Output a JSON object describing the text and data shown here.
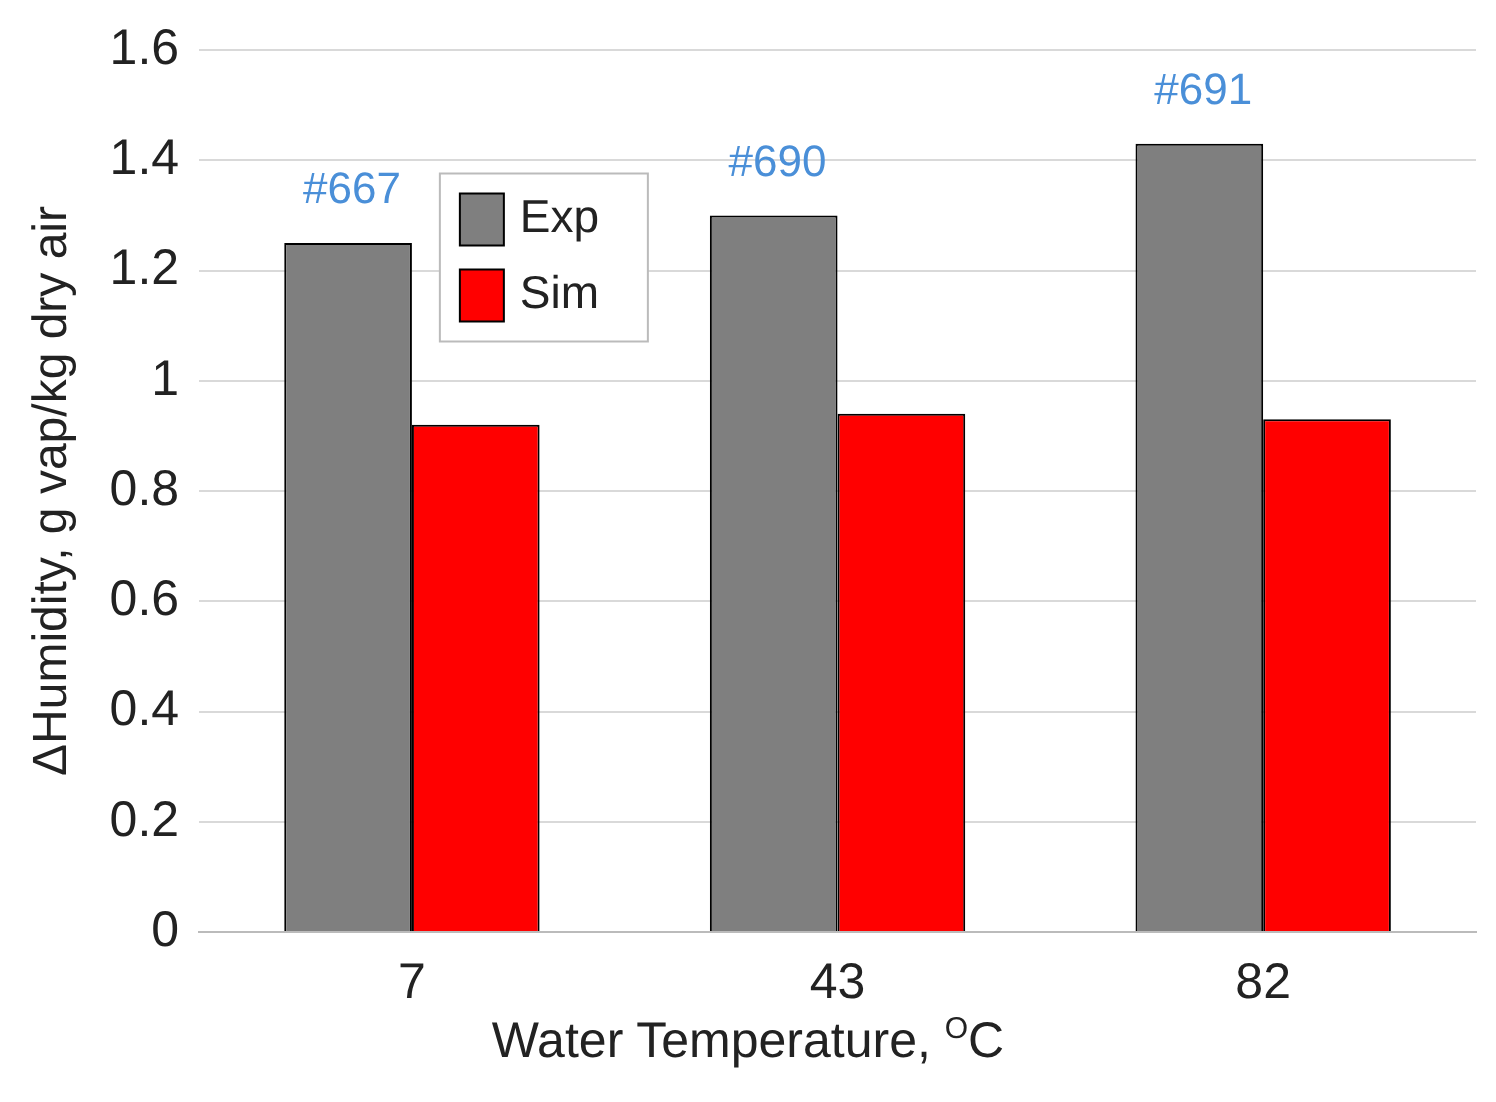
{
  "chart_data": {
    "type": "bar",
    "xlabel": "Water Temperature, $^{O}$C",
    "ylabel": "ΔHumidity, g vap/kg dry air",
    "categories": [
      "7",
      "43",
      "82"
    ],
    "series": [
      {
        "name": "Exp",
        "color": "#7f7f7f",
        "values": [
          1.25,
          1.3,
          1.43
        ]
      },
      {
        "name": "Sim",
        "color": "#ff0000",
        "values": [
          0.92,
          0.94,
          0.93
        ]
      }
    ],
    "ylim": [
      0,
      1.6
    ],
    "yticks": [
      0,
      0.2,
      0.4,
      0.6,
      0.8,
      1,
      1.2,
      1.4,
      1.6
    ],
    "grid": "y",
    "legend": "top left",
    "annotations": [
      "#667",
      "#690",
      "#691"
    ]
  }
}
